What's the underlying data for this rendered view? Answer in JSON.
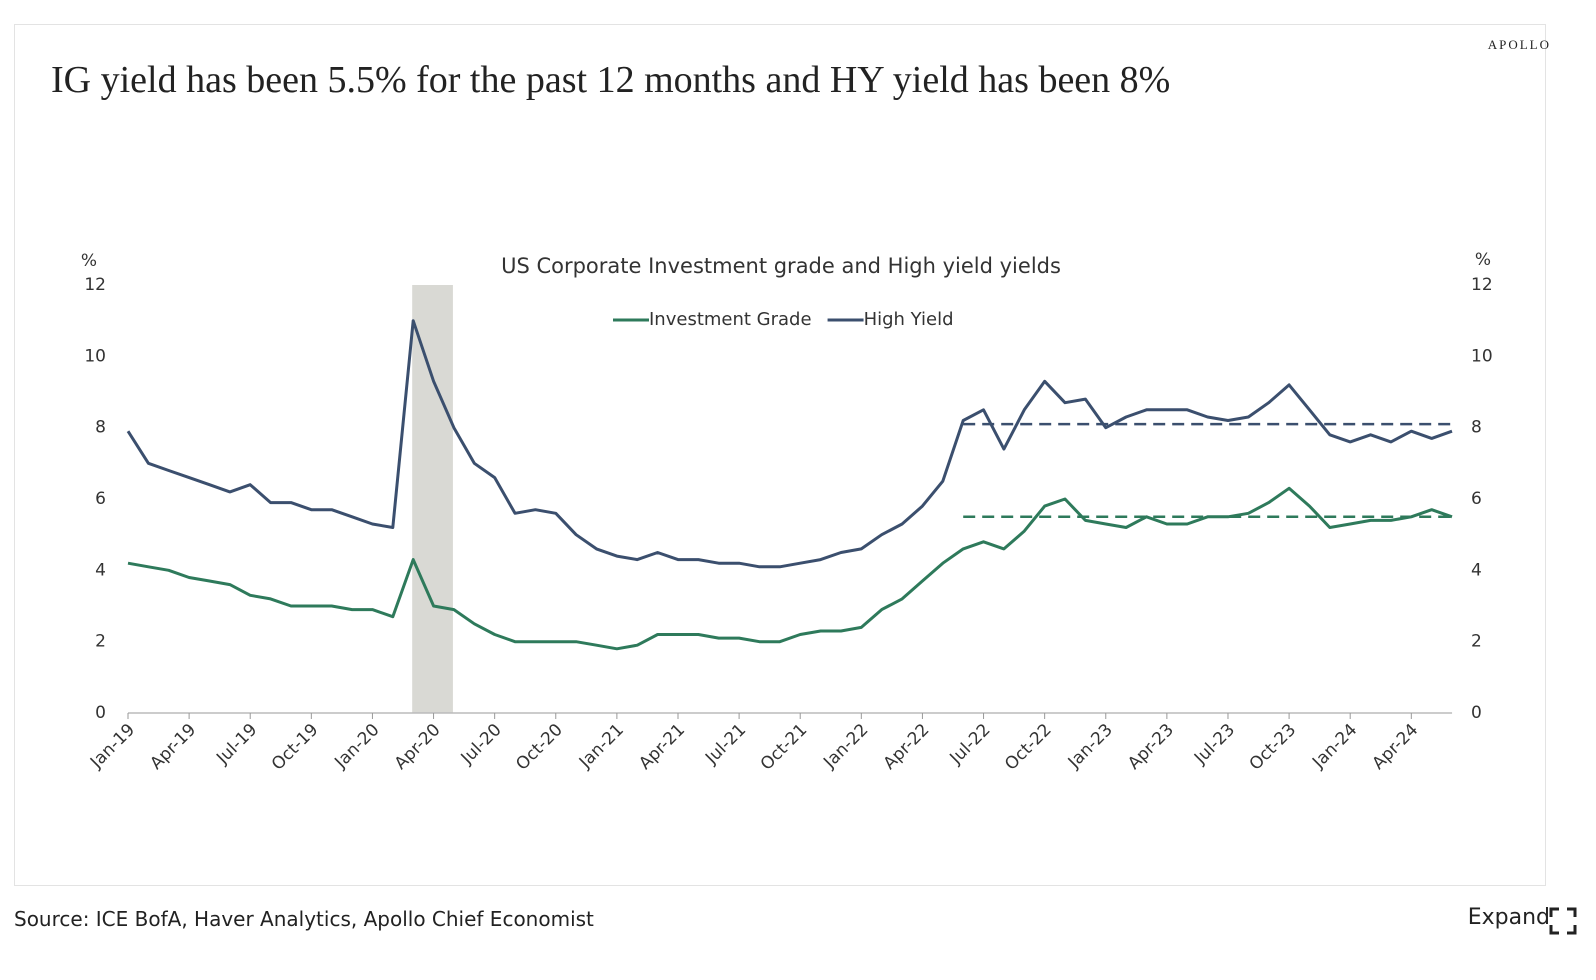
{
  "brand": "APOLLO",
  "title": "IG yield has been 5.5% for the past 12 months and HY yield has been 8%",
  "source": "Source: ICE BofA, Haver Analytics, Apollo Chief Economist",
  "button": "Expand",
  "chart_data": {
    "type": "line",
    "title": "US Corporate Investment grade and High yield yields",
    "ylabel": "%",
    "y2label": "%",
    "categories": [
      "Jan-19",
      null,
      null,
      "Apr-19",
      null,
      null,
      "Jul-19",
      null,
      null,
      "Oct-19",
      null,
      null,
      "Jan-20",
      null,
      null,
      "Apr-20",
      null,
      null,
      "Jul-20",
      null,
      null,
      "Oct-20",
      null,
      null,
      "Jan-21",
      null,
      null,
      "Apr-21",
      null,
      null,
      "Jul-21",
      null,
      null,
      "Oct-21",
      null,
      null,
      "Jan-22",
      null,
      null,
      "Apr-22",
      null,
      null,
      "Jul-22",
      null,
      null,
      "Oct-22",
      null,
      null,
      "Jan-23",
      null,
      null,
      "Apr-23",
      null,
      null,
      "Jul-23",
      null,
      null,
      "Oct-23",
      null,
      null,
      "Jan-24",
      null,
      null,
      "Apr-24",
      null,
      null
    ],
    "series": [
      {
        "name": "Investment Grade",
        "color": "#2e7a5b",
        "values": [
          4.2,
          4.1,
          4.0,
          3.8,
          3.7,
          3.6,
          3.3,
          3.2,
          3.0,
          3.0,
          3.0,
          2.9,
          2.9,
          2.7,
          4.3,
          3.0,
          2.9,
          2.5,
          2.2,
          2.0,
          2.0,
          2.0,
          2.0,
          1.9,
          1.8,
          1.9,
          2.2,
          2.2,
          2.2,
          2.1,
          2.1,
          2.0,
          2.0,
          2.2,
          2.3,
          2.3,
          2.4,
          2.9,
          3.2,
          3.7,
          4.2,
          4.6,
          4.8,
          4.6,
          5.1,
          5.8,
          6.0,
          5.4,
          5.3,
          5.2,
          5.5,
          5.3,
          5.3,
          5.5,
          5.5,
          5.6,
          5.9,
          6.3,
          5.8,
          5.2,
          5.3,
          5.4,
          5.4,
          5.5,
          5.7,
          5.5
        ]
      },
      {
        "name": "High Yield",
        "color": "#3b4f6e",
        "values": [
          7.9,
          7.0,
          6.8,
          6.6,
          6.4,
          6.2,
          6.4,
          5.9,
          5.9,
          5.7,
          5.7,
          5.5,
          5.3,
          5.2,
          11.0,
          9.3,
          8.0,
          7.0,
          6.6,
          5.6,
          5.7,
          5.6,
          5.0,
          4.6,
          4.4,
          4.3,
          4.5,
          4.3,
          4.3,
          4.2,
          4.2,
          4.1,
          4.1,
          4.2,
          4.3,
          4.5,
          4.6,
          5.0,
          5.3,
          5.8,
          6.5,
          8.2,
          8.5,
          7.4,
          8.5,
          9.3,
          8.7,
          8.8,
          8.0,
          8.3,
          8.5,
          8.5,
          8.5,
          8.3,
          8.2,
          8.3,
          8.7,
          9.2,
          8.5,
          7.8,
          7.6,
          7.8,
          7.6,
          7.9,
          7.7,
          7.9
        ]
      }
    ],
    "reference_lines": [
      {
        "color": "#2e7a5b",
        "dash": true,
        "values": [
          null,
          null,
          null,
          null,
          null,
          null,
          null,
          null,
          null,
          null,
          null,
          null,
          null,
          null,
          null,
          null,
          null,
          null,
          null,
          null,
          null,
          null,
          null,
          null,
          null,
          null,
          null,
          null,
          null,
          null,
          null,
          null,
          null,
          null,
          null,
          null,
          null,
          null,
          null,
          null,
          null,
          5.5,
          5.5,
          5.5,
          5.5,
          5.5,
          5.5,
          5.5,
          5.5,
          5.5,
          5.5,
          5.5,
          5.5,
          5.5,
          5.5,
          5.5,
          5.5,
          5.5,
          5.5,
          5.5,
          5.5,
          5.5,
          5.5,
          5.5,
          5.5,
          5.5
        ]
      },
      {
        "color": "#3b4f6e",
        "dash": true,
        "values": [
          null,
          null,
          null,
          null,
          null,
          null,
          null,
          null,
          null,
          null,
          null,
          null,
          null,
          null,
          null,
          null,
          null,
          null,
          null,
          null,
          null,
          null,
          null,
          null,
          null,
          null,
          null,
          null,
          null,
          null,
          null,
          null,
          null,
          null,
          null,
          null,
          null,
          null,
          null,
          null,
          null,
          8.1,
          8.1,
          8.1,
          8.1,
          8.1,
          8.1,
          8.1,
          8.1,
          8.1,
          8.1,
          8.1,
          8.1,
          8.1,
          8.1,
          8.1,
          8.1,
          8.1,
          8.1,
          8.1,
          8.1,
          8.1,
          8.1,
          8.1,
          8.1,
          8.1
        ]
      }
    ],
    "shade": {
      "from": 14,
      "to": 16,
      "color": "#d9d9d4"
    },
    "ylim": [
      0,
      12
    ],
    "yticks": [
      0,
      2,
      4,
      6,
      8,
      10,
      12
    ],
    "y2lim": [
      0,
      12
    ],
    "y2ticks": [
      0,
      2,
      4,
      6,
      8,
      10,
      12
    ],
    "grid": false
  }
}
